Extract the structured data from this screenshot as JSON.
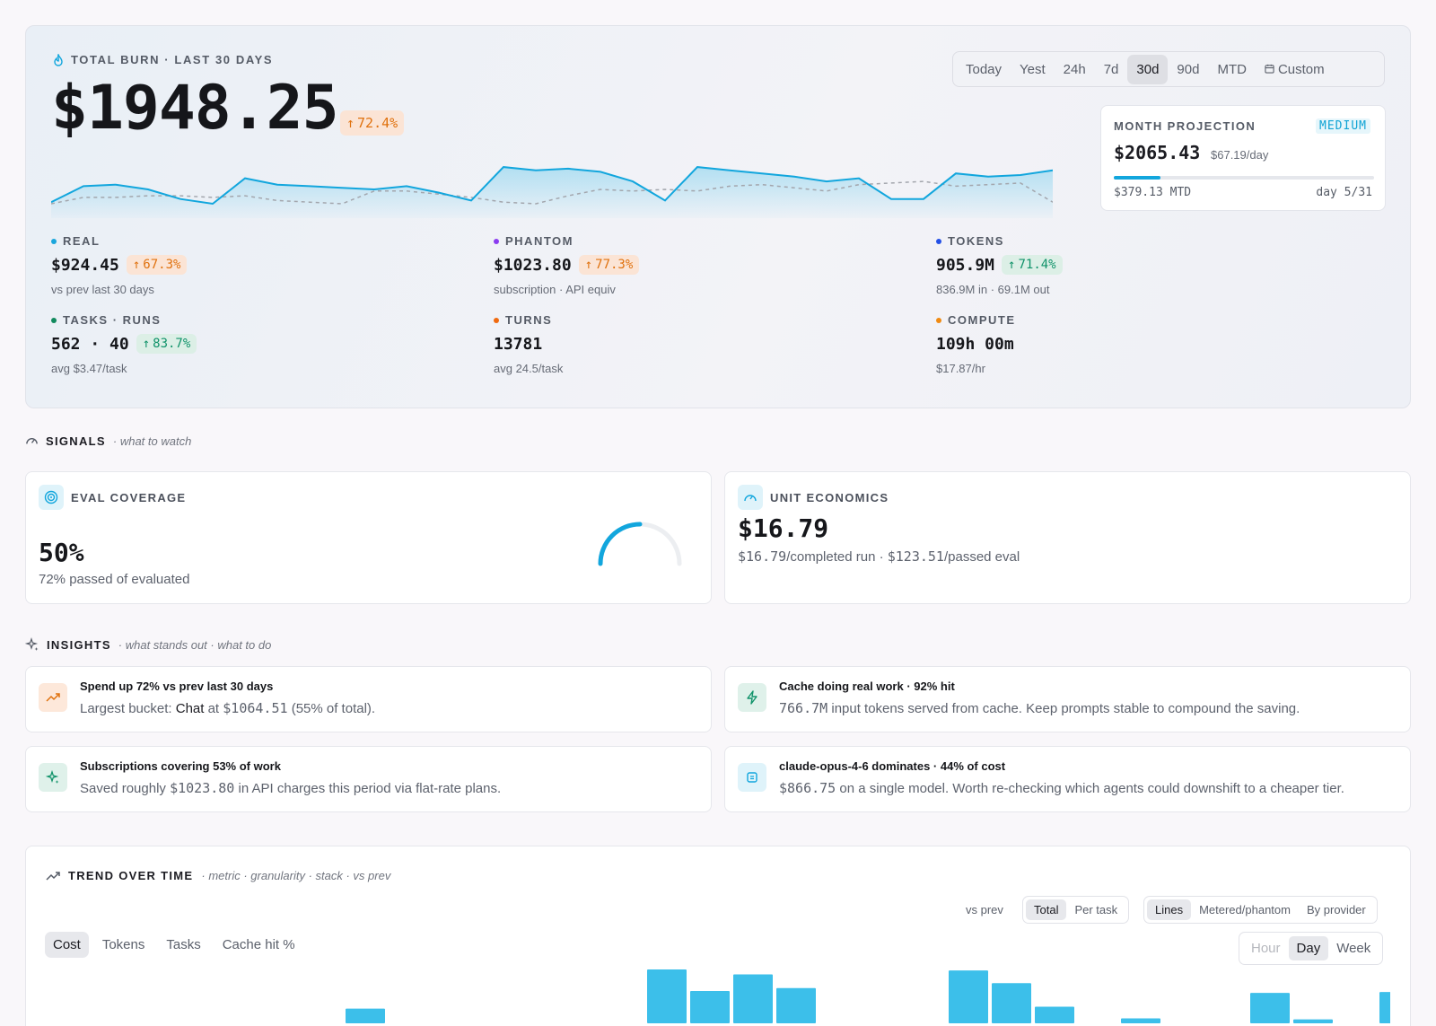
{
  "hero": {
    "label": "TOTAL BURN · LAST 30 DAYS",
    "amount": "$1948.25",
    "change": "72.4%",
    "ranges": [
      "Today",
      "Yest",
      "24h",
      "7d",
      "30d",
      "90d",
      "MTD",
      "Custom"
    ],
    "active_range": "30d",
    "sparkline": {
      "current": [
        10,
        20,
        21,
        18,
        12,
        9,
        25,
        21,
        20,
        19,
        18,
        20,
        16,
        11,
        32,
        30,
        31,
        29,
        23,
        11,
        32,
        30,
        28,
        26,
        23,
        25,
        12,
        12,
        28,
        26,
        27,
        30
      ],
      "previous": [
        9,
        13,
        13,
        14,
        14,
        13,
        14,
        11,
        10,
        9,
        17,
        17,
        15,
        13,
        10,
        9,
        14,
        18,
        17,
        18,
        17,
        20,
        21,
        19,
        17,
        21,
        22,
        23,
        20,
        21,
        22,
        10
      ]
    },
    "projection": {
      "label": "MONTH PROJECTION",
      "confidence": "MEDIUM",
      "amount": "$2065.43",
      "per_day": "$67.19/day",
      "progress": 0.18,
      "mtd": "$379.13 MTD",
      "day": "day 5/31"
    },
    "metrics": [
      {
        "label": "REAL",
        "value": "$924.45",
        "change": "67.3%",
        "change_color": "orange",
        "sub": "vs prev last 30 days",
        "dot": "#1aa6dc"
      },
      {
        "label": "PHANTOM",
        "value": "$1023.80",
        "change": "77.3%",
        "change_color": "orange",
        "sub": "subscription · API equiv",
        "dot": "#8b3cf0"
      },
      {
        "label": "TOKENS",
        "value": "905.9M",
        "change": "71.4%",
        "change_color": "green",
        "sub": "836.9M in · 69.1M out",
        "dot": "#2450e6"
      },
      {
        "label": "TASKS · RUNS",
        "value": "562 · 40",
        "change": "83.7%",
        "change_color": "green",
        "sub": "avg $3.47/task",
        "dot": "#128a5e"
      },
      {
        "label": "TURNS",
        "value": "13781",
        "change": "",
        "change_color": "",
        "sub": "avg 24.5/task",
        "dot": "#f06a0f"
      },
      {
        "label": "COMPUTE",
        "value": "109h 00m",
        "change": "",
        "change_color": "",
        "sub": "$17.87/hr",
        "dot": "#f08a12"
      }
    ]
  },
  "signals": {
    "title": "SIGNALS",
    "subtitle": "· what to watch",
    "eval": {
      "title": "EVAL COVERAGE",
      "value": "50%",
      "sub": "72% passed of evaluated",
      "gauge": 0.5
    },
    "unit": {
      "title": "UNIT ECONOMICS",
      "value": "$16.79",
      "sub_a": "$16.79",
      "sub_b": "/completed run · ",
      "sub_c": "$123.51",
      "sub_d": "/passed eval"
    }
  },
  "insights": {
    "title": "INSIGHTS",
    "subtitle": "· what stands out · what to do",
    "items": [
      {
        "title": "Spend up 72% vs prev last 30 days",
        "pre": "Largest bucket: ",
        "strong": "Chat",
        "mid": " at ",
        "code": "$1064.51",
        "post": " (55% of total).",
        "icon": "trending-up-icon"
      },
      {
        "title": "Cache doing real work · 92% hit",
        "pre": "",
        "strong": "",
        "mid": "",
        "code": "766.7M",
        "post": " input tokens served from cache. Keep prompts stable to compound the saving.",
        "icon": "bolt-icon"
      },
      {
        "title": "Subscriptions covering 53% of work",
        "pre": "Saved roughly ",
        "strong": "",
        "mid": "",
        "code": "$1023.80",
        "post": " in API charges this period via flat-rate plans.",
        "icon": "sparkle-icon"
      },
      {
        "title": "claude-opus-4-6 dominates · 44% of cost",
        "pre": "",
        "strong": "",
        "mid": "",
        "code": "$866.75",
        "post": " on a single model. Worth re-checking which agents could downshift to a cheaper tier.",
        "icon": "chip-icon"
      }
    ]
  },
  "trend": {
    "title": "TREND OVER TIME",
    "subtitle": "· metric · granularity · stack · vs prev",
    "vs_prev": "vs prev",
    "mode": [
      "Total",
      "Per task"
    ],
    "stack": [
      "Lines",
      "Metered/phantom",
      "By provider"
    ],
    "metrics": [
      "Cost",
      "Tokens",
      "Tasks",
      "Cache hit %"
    ],
    "granularity": [
      "Hour",
      "Day",
      "Week"
    ],
    "bars": [
      0,
      0,
      0,
      0,
      0,
      0,
      0,
      15,
      0,
      0,
      0,
      0,
      0,
      0,
      55,
      33,
      50,
      36,
      0,
      0,
      0,
      54,
      41,
      17,
      0,
      5,
      0,
      0,
      31,
      4,
      0,
      32
    ]
  }
}
